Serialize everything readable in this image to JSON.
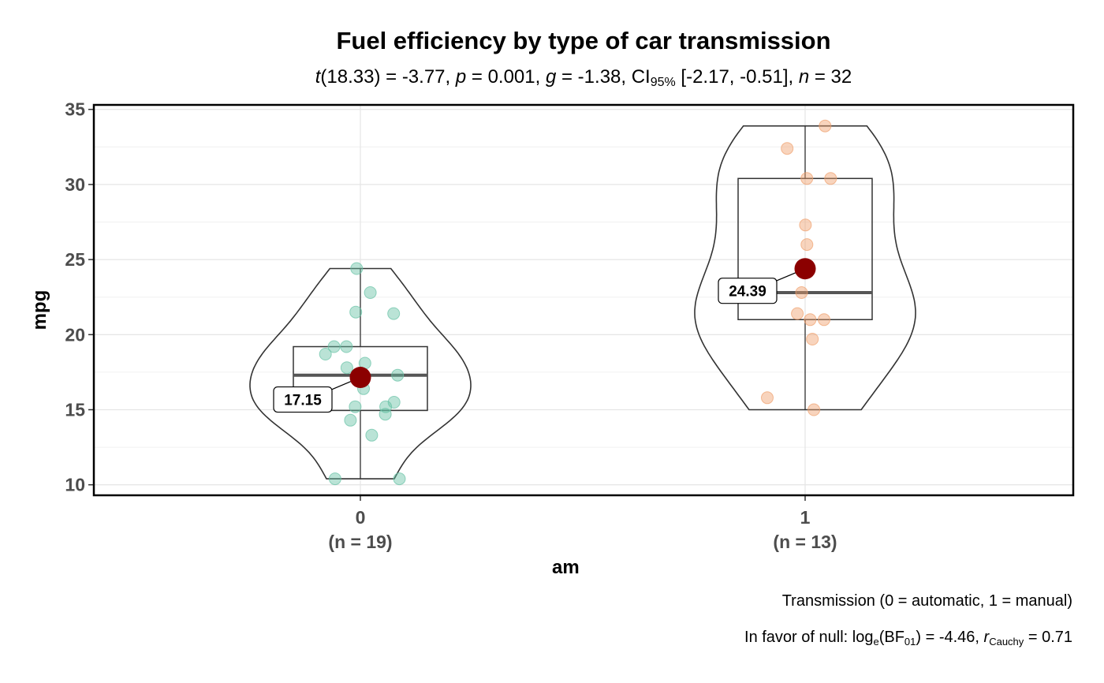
{
  "title": "Fuel efficiency by type of car transmission",
  "subtitle": {
    "t_symbol": "t",
    "t_df": "(18.33) = -3.77, ",
    "p_symbol": "p",
    "p_text": " = 0.001, ",
    "g_symbol": "g",
    "g_text": " = -1.38, CI",
    "ci_sub": "95%",
    "ci_text": " [-2.17, -0.51], ",
    "n_symbol": "n",
    "n_text": " = 32"
  },
  "caption": {
    "line1": "Transmission (0 = automatic, 1 = manual)",
    "line2_pre": "In favor of null: log",
    "line2_sub_e": "e",
    "line2_mid": "(BF",
    "line2_sub_01": "01",
    "line2_post": ") = -4.46, ",
    "r_symbol": "r",
    "r_sub": "Cauchy",
    "r_text": " = 0.71"
  },
  "colors": {
    "group0": "#66c2a5",
    "group1": "#f0a06c",
    "mean": "#8b0000",
    "grid": "#e6e6e6",
    "axis_text": "#4d4d4d"
  },
  "chart_data": {
    "type": "violin-box-scatter",
    "xlabel": "am",
    "ylabel": "mpg",
    "ylim": [
      9.3,
      35.3
    ],
    "yticks": [
      10,
      15,
      20,
      25,
      30,
      35
    ],
    "grid": true,
    "groups": [
      {
        "tick_label": "0",
        "n_label": "(n = 19)",
        "mean": 17.15,
        "mean_label": "17.15",
        "median": 17.3,
        "q1": 14.95,
        "q3": 19.2,
        "min": 10.4,
        "max": 24.4,
        "points": [
          21.4,
          18.7,
          18.1,
          14.3,
          24.4,
          22.8,
          19.2,
          17.8,
          16.4,
          17.3,
          15.2,
          10.4,
          10.4,
          14.7,
          21.5,
          15.5,
          15.2,
          13.3,
          19.2
        ]
      },
      {
        "tick_label": "1",
        "n_label": "(n = 13)",
        "mean": 24.39,
        "mean_label": "24.39",
        "median": 22.8,
        "q1": 21.0,
        "q3": 30.4,
        "min": 15.0,
        "max": 33.9,
        "points": [
          21.0,
          21.0,
          22.8,
          32.4,
          30.4,
          33.9,
          27.3,
          26.0,
          30.4,
          15.8,
          19.7,
          15.0,
          21.4
        ]
      }
    ]
  }
}
